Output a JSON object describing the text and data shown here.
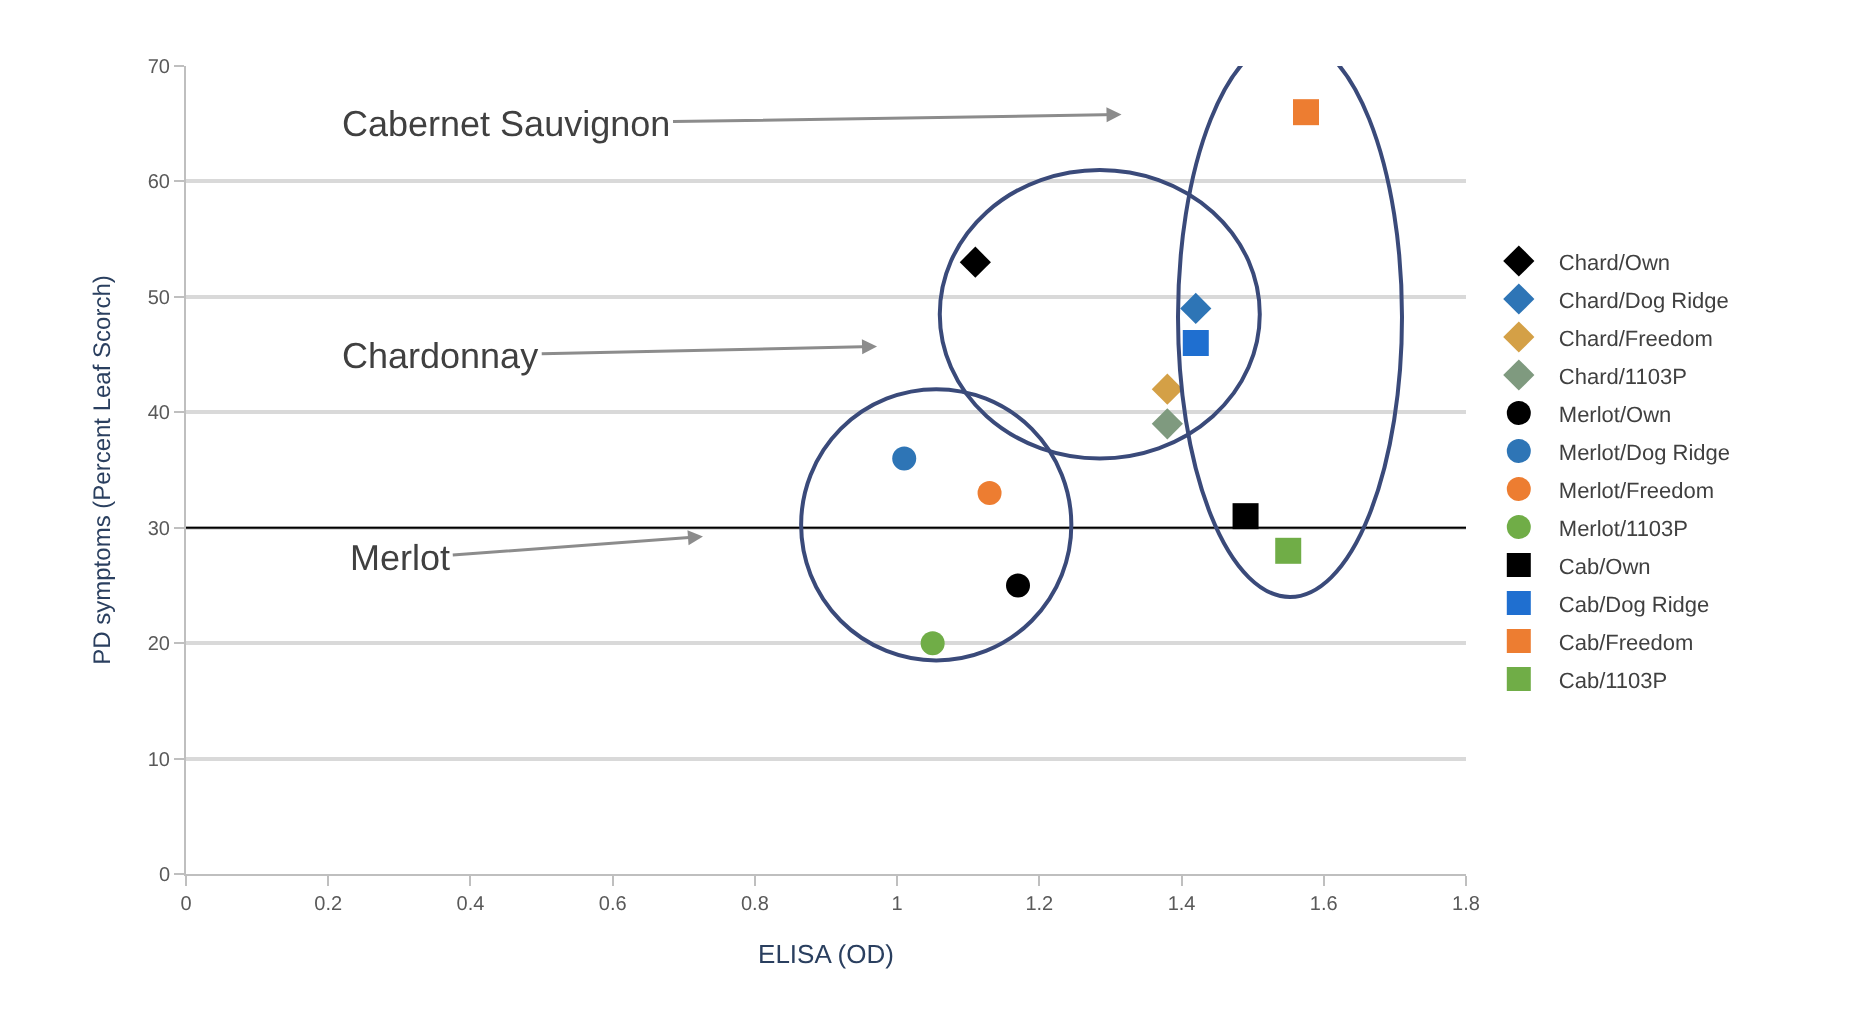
{
  "chart_data": {
    "type": "scatter",
    "xlabel": "ELISA (OD)",
    "ylabel": "PD symptoms (Percent Leaf Scorch)",
    "xlim": [
      0,
      1.8
    ],
    "xticks": [
      0,
      0.2,
      0.4,
      0.6,
      0.8,
      1,
      1.2,
      1.4,
      1.6,
      1.8
    ],
    "ylim": [
      0,
      70
    ],
    "yticks": [
      0,
      10,
      20,
      30,
      40,
      50,
      60,
      70
    ],
    "grid": "y",
    "legend": "right",
    "ref_lines": [
      {
        "axis": "y",
        "value": 30,
        "color": "#000000"
      }
    ],
    "annotations": [
      "Cabernet Sauvignon",
      "Chardonnay",
      "Merlot"
    ],
    "series": [
      {
        "name": "Chard/Own",
        "color": "#000000",
        "marker": "diamond",
        "x": [
          1.11
        ],
        "values": [
          53
        ]
      },
      {
        "name": "Chard/Dog Ridge",
        "color": "#2e75b6",
        "marker": "diamond",
        "x": [
          1.42
        ],
        "values": [
          49
        ]
      },
      {
        "name": "Chard/Freedom",
        "color": "#d4a046",
        "marker": "diamond",
        "x": [
          1.38
        ],
        "values": [
          42
        ]
      },
      {
        "name": "Chard/1103P",
        "color": "#7f9a7f",
        "marker": "diamond",
        "x": [
          1.38
        ],
        "values": [
          39
        ]
      },
      {
        "name": "Merlot/Own",
        "color": "#000000",
        "marker": "circle",
        "x": [
          1.17
        ],
        "values": [
          25
        ]
      },
      {
        "name": "Merlot/Dog Ridge",
        "color": "#2e75b6",
        "marker": "circle",
        "x": [
          1.01
        ],
        "values": [
          36
        ]
      },
      {
        "name": "Merlot/Freedom",
        "color": "#ed7d31",
        "marker": "circle",
        "x": [
          1.13
        ],
        "values": [
          33
        ]
      },
      {
        "name": "Merlot/1103P",
        "color": "#70ad47",
        "marker": "circle",
        "x": [
          1.05
        ],
        "values": [
          20
        ]
      },
      {
        "name": "Cab/Own",
        "color": "#000000",
        "marker": "square",
        "x": [
          1.49
        ],
        "values": [
          31
        ]
      },
      {
        "name": "Cab/Dog Ridge",
        "color": "#1f6fd0",
        "marker": "square",
        "x": [
          1.42
        ],
        "values": [
          46
        ]
      },
      {
        "name": "Cab/Freedom",
        "color": "#ed7d31",
        "marker": "square",
        "x": [
          1.575
        ],
        "values": [
          66
        ]
      },
      {
        "name": "Cab/1103P",
        "color": "#70ad47",
        "marker": "square",
        "x": [
          1.55
        ],
        "values": [
          28
        ]
      }
    ]
  }
}
